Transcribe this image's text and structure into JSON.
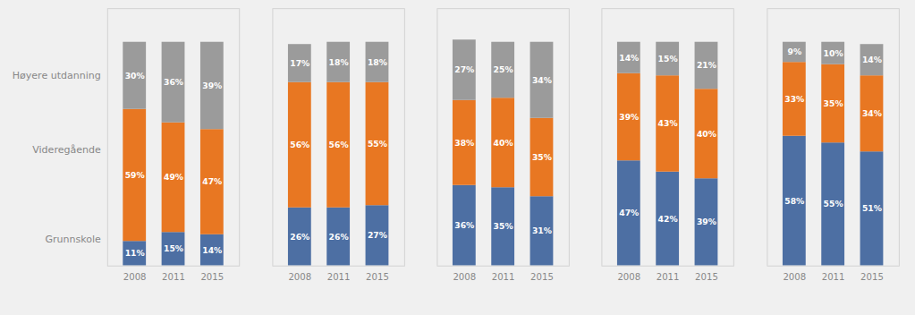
{
  "chart_data": [
    {
      "type": "bar",
      "stacked": true,
      "data_labels": true,
      "tick_labels": "x",
      "grid": false,
      "categories": [
        "2008",
        "2011",
        "2015"
      ],
      "ylim": [
        0,
        115
      ],
      "yticks": [],
      "series": [
        {
          "name": "Grunnskole",
          "color": "#4d6fa3",
          "values": [
            11,
            15,
            14
          ],
          "value_labels": [
            "11%",
            "15%",
            "14%"
          ]
        },
        {
          "name": "Videregående",
          "color": "#E87722",
          "values": [
            59,
            49,
            47
          ],
          "value_labels": [
            "59%",
            "49%",
            "47%"
          ]
        },
        {
          "name": "Høyere utdanning",
          "color": "#9B9B9B",
          "values": [
            30,
            36,
            39
          ],
          "value_labels": [
            "30%",
            "36%",
            "39%"
          ]
        }
      ],
      "annotations": [
        {
          "text": "Høyere utdanning",
          "y": 85
        },
        {
          "text": "Videregående",
          "y": 52
        },
        {
          "text": "Grunnskole",
          "y": 12
        }
      ]
    },
    {
      "type": "bar",
      "stacked": true,
      "data_labels": true,
      "tick_labels": "x",
      "grid": false,
      "categories": [
        "2008",
        "2011",
        "2015"
      ],
      "ylim": [
        0,
        115
      ],
      "yticks": [],
      "series": [
        {
          "name": "Grunnskole",
          "color": "#4d6fa3",
          "values": [
            26,
            26,
            27
          ],
          "value_labels": [
            "26%",
            "26%",
            "27%"
          ]
        },
        {
          "name": "Videregående",
          "color": "#E87722",
          "values": [
            56,
            56,
            55
          ],
          "value_labels": [
            "56%",
            "56%",
            "55%"
          ]
        },
        {
          "name": "Høyere utdanning",
          "color": "#9B9B9B",
          "values": [
            17,
            18,
            18
          ],
          "value_labels": [
            "17%",
            "18%",
            "18%"
          ]
        }
      ]
    },
    {
      "type": "bar",
      "stacked": true,
      "data_labels": true,
      "tick_labels": "x",
      "grid": false,
      "categories": [
        "2008",
        "2011",
        "2015"
      ],
      "ylim": [
        0,
        115
      ],
      "yticks": [],
      "series": [
        {
          "name": "Grunnskole",
          "color": "#4d6fa3",
          "values": [
            36,
            35,
            31
          ],
          "value_labels": [
            "36%",
            "35%",
            "31%"
          ]
        },
        {
          "name": "Videregående",
          "color": "#E87722",
          "values": [
            38,
            40,
            35
          ],
          "value_labels": [
            "38%",
            "40%",
            "35%"
          ]
        },
        {
          "name": "Høyere utdanning",
          "color": "#9B9B9B",
          "values": [
            27,
            25,
            34
          ],
          "value_labels": [
            "27%",
            "25%",
            "34%"
          ]
        }
      ]
    },
    {
      "type": "bar",
      "stacked": true,
      "data_labels": true,
      "tick_labels": "x",
      "grid": false,
      "categories": [
        "2008",
        "2011",
        "2015"
      ],
      "ylim": [
        0,
        115
      ],
      "yticks": [],
      "series": [
        {
          "name": "Grunnskole",
          "color": "#4d6fa3",
          "values": [
            47,
            42,
            39
          ],
          "value_labels": [
            "47%",
            "42%",
            "39%"
          ]
        },
        {
          "name": "Videregående",
          "color": "#E87722",
          "values": [
            39,
            43,
            40
          ],
          "value_labels": [
            "39%",
            "43%",
            "40%"
          ]
        },
        {
          "name": "Høyere utdanning",
          "color": "#9B9B9B",
          "values": [
            14,
            15,
            21
          ],
          "value_labels": [
            "14%",
            "15%",
            "21%"
          ]
        }
      ]
    },
    {
      "type": "bar",
      "stacked": true,
      "data_labels": true,
      "tick_labels": "x",
      "grid": false,
      "categories": [
        "2008",
        "2011",
        "2015"
      ],
      "ylim": [
        0,
        115
      ],
      "yticks": [],
      "series": [
        {
          "name": "Grunnskole",
          "color": "#4d6fa3",
          "values": [
            58,
            55,
            51
          ],
          "value_labels": [
            "58%",
            "55%",
            "51%"
          ]
        },
        {
          "name": "Videregående",
          "color": "#E87722",
          "values": [
            33,
            35,
            34
          ],
          "value_labels": [
            "33%",
            "35%",
            "34%"
          ]
        },
        {
          "name": "Høyere utdanning",
          "color": "#9B9B9B",
          "values": [
            9,
            10,
            14
          ],
          "value_labels": [
            "9%",
            "10%",
            "14%"
          ]
        }
      ]
    }
  ]
}
